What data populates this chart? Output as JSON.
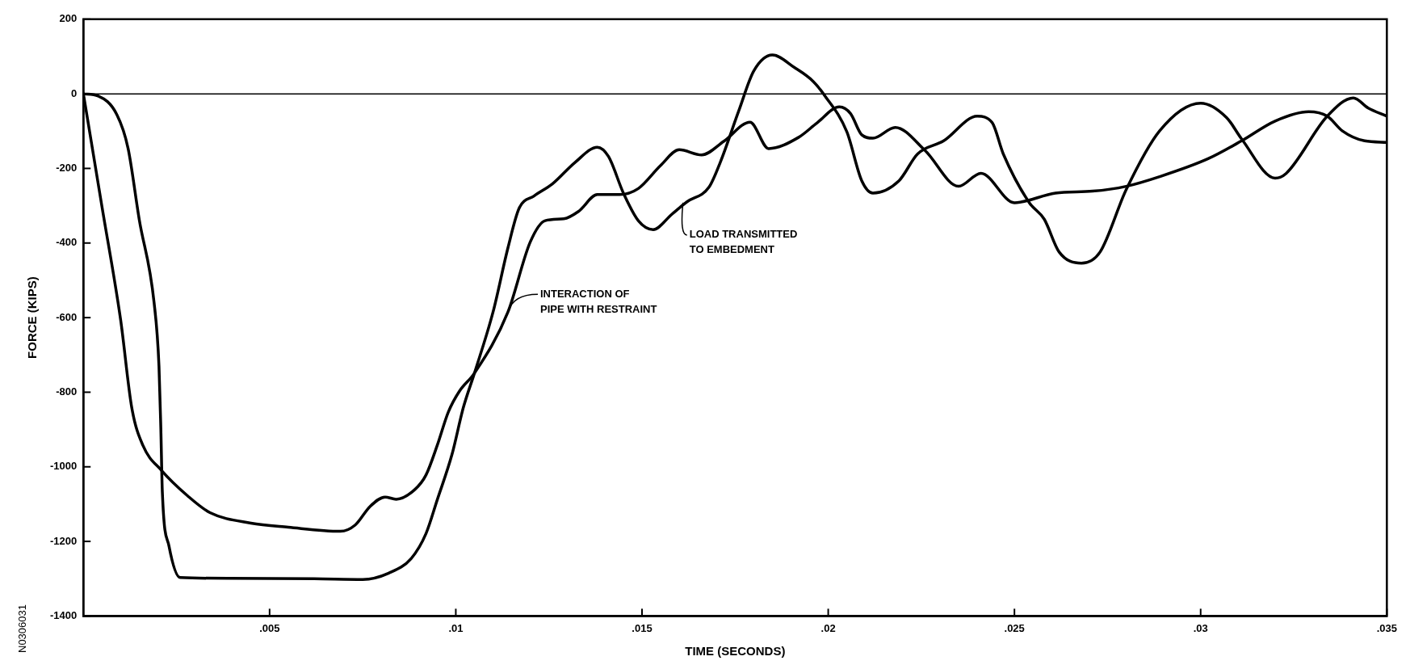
{
  "chart_data": {
    "type": "line",
    "xlabel": "TIME (SECONDS)",
    "ylabel": "FORCE (KIPS)",
    "xlim": [
      0,
      0.035
    ],
    "xticks": [
      {
        "value": 0.005,
        "label": ".005"
      },
      {
        "value": 0.01,
        "label": ".01"
      },
      {
        "value": 0.015,
        "label": ".015"
      },
      {
        "value": 0.02,
        "label": ".02"
      },
      {
        "value": 0.025,
        "label": ".025"
      },
      {
        "value": 0.03,
        "label": ".03"
      },
      {
        "value": 0.035,
        "label": ".035"
      }
    ],
    "ylim": [
      -1400,
      200
    ],
    "yticks": [
      200,
      0,
      -200,
      -400,
      -600,
      -800,
      -1000,
      -1200,
      -1400
    ],
    "grid": false,
    "legend": false,
    "marker": "none",
    "line_style": "solid",
    "ref_lines": [
      {
        "axis": "y",
        "value": 0,
        "color": "#000000"
      }
    ],
    "series": [
      {
        "color": "#000000",
        "x": [
          0,
          0.0005,
          0.001,
          0.0013,
          0.0016,
          0.0021,
          0.0028,
          0.0034,
          0.0045,
          0.0055,
          0.0069,
          0.0073,
          0.0077,
          0.0081,
          0.0084,
          0.0089,
          0.0092,
          0.0095,
          0.0098,
          0.0101,
          0.0105,
          0.0114,
          0.012,
          0.0124,
          0.0129,
          0.0133,
          0.0138,
          0.0144,
          0.0149,
          0.0155,
          0.016,
          0.0166,
          0.0172,
          0.0179,
          0.0184,
          0.0192,
          0.0197,
          0.0203,
          0.0206,
          0.0209,
          0.0212,
          0.0218,
          0.0226,
          0.0235,
          0.0241,
          0.025,
          0.0261,
          0.0271,
          0.028,
          0.0289,
          0.0302,
          0.0311,
          0.032,
          0.0329,
          0.0334,
          0.0338,
          0.0344,
          0.035
        ],
        "values": [
          0,
          -303,
          -606,
          -842,
          -943,
          -1010,
          -1078,
          -1123,
          -1151,
          -1162,
          -1173,
          -1156,
          -1106,
          -1081,
          -1087,
          -1061,
          -1022,
          -943,
          -853,
          -797,
          -749,
          -585,
          -397,
          -340,
          -335,
          -315,
          -270,
          -270,
          -254,
          -192,
          -150,
          -164,
          -127,
          -76,
          -147,
          -117,
          -78,
          -35,
          -53,
          -110,
          -119,
          -90,
          -152,
          -248,
          -213,
          -292,
          -266,
          -261,
          -248,
          -222,
          -174,
          -126,
          -73,
          -48,
          -60,
          -99,
          -126,
          -130
        ]
      },
      {
        "color": "#000000",
        "x": [
          0,
          0.0004,
          0.0009,
          0.0012,
          0.0015,
          0.0019,
          0.00203,
          0.00208,
          0.00212,
          0.0023,
          0.0026,
          0.0039,
          0.0062,
          0.0075,
          0.0082,
          0.0088,
          0.0092,
          0.0095,
          0.0099,
          0.0102,
          0.0105,
          0.011,
          0.0114,
          0.0117,
          0.0121,
          0.0126,
          0.0132,
          0.0138,
          0.0141,
          0.0145,
          0.0149,
          0.0153,
          0.0158,
          0.0162,
          0.0168,
          0.0171,
          0.0176,
          0.018,
          0.0185,
          0.0191,
          0.0196,
          0.0199,
          0.0205,
          0.0209,
          0.0212,
          0.0219,
          0.0224,
          0.0231,
          0.024,
          0.0244,
          0.0247,
          0.0254,
          0.0258,
          0.0262,
          0.0268,
          0.0273,
          0.028,
          0.0289,
          0.03,
          0.0307,
          0.0311,
          0.032,
          0.0323,
          0.0334,
          0.0341,
          0.0345,
          0.035
        ],
        "values": [
          0,
          -6,
          -56,
          -146,
          -337,
          -561,
          -730,
          -898,
          -1067,
          -1213,
          -1297,
          -1299,
          -1300,
          -1302,
          -1285,
          -1246,
          -1179,
          -1089,
          -966,
          -842,
          -749,
          -585,
          -413,
          -307,
          -274,
          -241,
          -184,
          -143,
          -168,
          -266,
          -340,
          -364,
          -323,
          -290,
          -250,
          -184,
          -45,
          61,
          104,
          70,
          33,
          -4,
          -102,
          -233,
          -266,
          -233,
          -161,
          -126,
          -60,
          -77,
          -161,
          -292,
          -336,
          -424,
          -454,
          -424,
          -257,
          -99,
          -25,
          -64,
          -121,
          -226,
          -213,
          -60,
          -11,
          -38,
          -60
        ]
      }
    ],
    "annotations": [
      {
        "text": "INTERACTION OF\nPIPE WITH RESTRAINT",
        "x": 0.0114,
        "y": -585
      },
      {
        "text": "LOAD TRANSMITTED\nTO EMBEDMENT",
        "x": 0.0161,
        "y": -292
      },
      "N0306031"
    ]
  }
}
